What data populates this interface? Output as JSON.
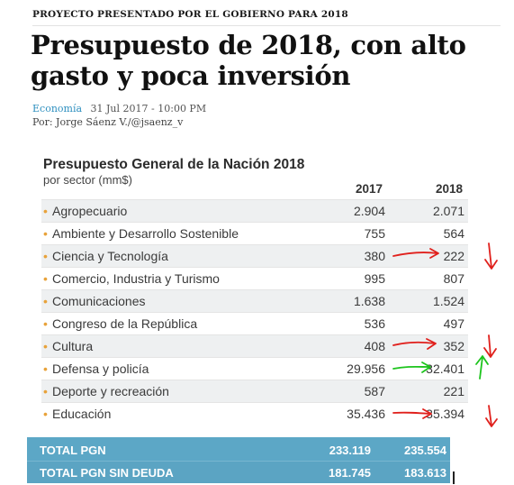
{
  "article": {
    "kicker": "PROYECTO PRESENTADO POR EL GOBIERNO PARA 2018",
    "headline": "Presupuesto de 2018, con alto gasto y poca inversión",
    "section": "Economía",
    "date": "31 Jul 2017 - 10:00 PM",
    "author": "Por: Jorge Sáenz V./@jsaenz_v"
  },
  "table": {
    "title": "Presupuesto General de la Nación 2018",
    "subtitle": "por sector (mm$)",
    "col_2017": "2017",
    "col_2018": "2018",
    "bullet": "•",
    "rows": [
      {
        "label": "Agropecuario",
        "v2017": "2.904",
        "v2018": "2.071"
      },
      {
        "label": "Ambiente y Desarrollo Sostenible",
        "v2017": "755",
        "v2018": "564"
      },
      {
        "label": "Ciencia y Tecnología",
        "v2017": "380",
        "v2018": "222"
      },
      {
        "label": "Comercio, Industria y Turismo",
        "v2017": "995",
        "v2018": "807"
      },
      {
        "label": "Comunicaciones",
        "v2017": "1.638",
        "v2018": "1.524"
      },
      {
        "label": "Congreso de la República",
        "v2017": "536",
        "v2018": "497"
      },
      {
        "label": "Cultura",
        "v2017": "408",
        "v2018": "352"
      },
      {
        "label": "Defensa y policía",
        "v2017": "29.956",
        "v2018": "32.401"
      },
      {
        "label": "Deporte y recreación",
        "v2017": "587",
        "v2018": "221"
      },
      {
        "label": "Educación",
        "v2017": "35.436",
        "v2018": "35.394"
      }
    ],
    "totals": [
      {
        "label": "TOTAL PGN",
        "v2017": "233.119",
        "v2018": "235.554"
      },
      {
        "label": "TOTAL PGN SIN DEUDA",
        "v2017": "181.745",
        "v2018": "183.613"
      }
    ]
  },
  "annotations": {
    "red_color": "#e0201c",
    "green_color": "#1dc41d"
  }
}
